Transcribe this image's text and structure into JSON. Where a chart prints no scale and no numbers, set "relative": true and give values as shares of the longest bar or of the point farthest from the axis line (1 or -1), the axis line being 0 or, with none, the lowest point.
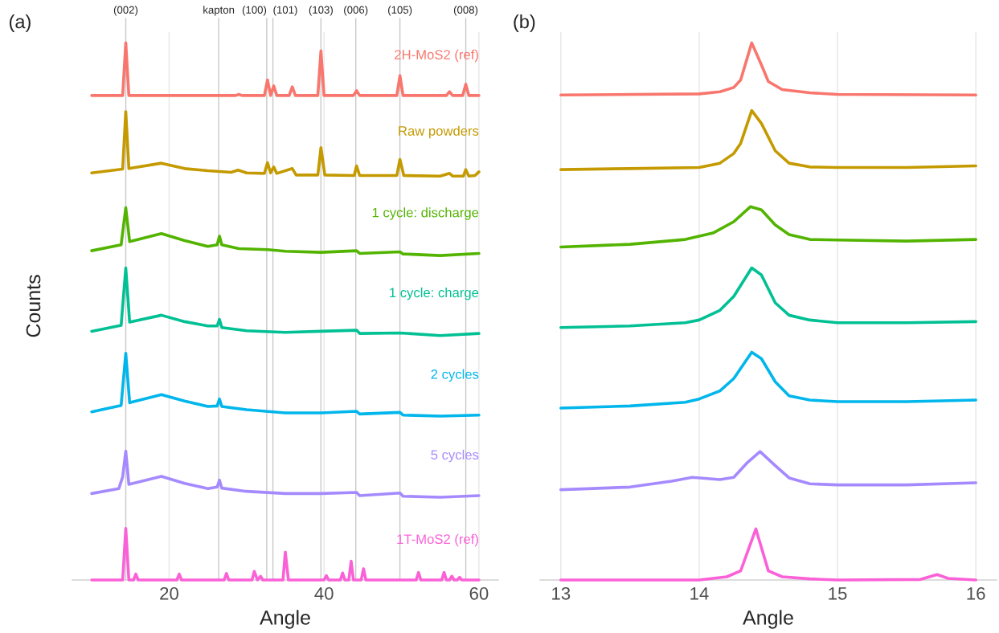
{
  "chart_data": [
    {
      "type": "line",
      "title": "(a)",
      "relative": true,
      "xlabel": "Angle",
      "ylabel": "Counts",
      "xlim": [
        7.5,
        62.5
      ],
      "xticks": [
        20,
        40,
        60
      ],
      "grid": "x",
      "ref_lines": [
        {
          "axis": "x",
          "value": 14.4,
          "color": "#c8c8c8"
        },
        {
          "axis": "x",
          "value": 26.4,
          "color": "#c8c8c8"
        },
        {
          "axis": "x",
          "value": 32.6,
          "color": "#c8c8c8"
        },
        {
          "axis": "x",
          "value": 33.4,
          "color": "#c8c8c8"
        },
        {
          "axis": "x",
          "value": 39.6,
          "color": "#c8c8c8"
        },
        {
          "axis": "x",
          "value": 44.1,
          "color": "#c8c8c8"
        },
        {
          "axis": "x",
          "value": 49.8,
          "color": "#c8c8c8"
        },
        {
          "axis": "x",
          "value": 58.3,
          "color": "#c8c8c8"
        }
      ],
      "annotations": [
        "(002)",
        "kapton",
        "(100)",
        "(101)",
        "(103)",
        "(006)",
        "(105)",
        "(008)"
      ],
      "series": [
        {
          "name": "2H-MoS2 (ref)",
          "color": "#f8766d",
          "x": [
            10,
            14.0,
            14.4,
            14.8,
            28.6,
            29.0,
            29.4,
            32.3,
            32.7,
            33.1,
            33.5,
            33.9,
            35.5,
            35.9,
            36.3,
            39.2,
            39.6,
            40.0,
            43.8,
            44.2,
            44.6,
            49.4,
            49.8,
            50.2,
            55.8,
            56.2,
            56.6,
            57.9,
            58.3,
            58.7,
            60
          ],
          "values": [
            0.902,
            0.902,
            1.0,
            0.902,
            0.902,
            0.904,
            0.902,
            0.902,
            0.931,
            0.902,
            0.92,
            0.902,
            0.902,
            0.918,
            0.902,
            0.902,
            0.985,
            0.902,
            0.902,
            0.911,
            0.902,
            0.902,
            0.939,
            0.902,
            0.902,
            0.909,
            0.902,
            0.902,
            0.923,
            0.902,
            0.902
          ]
        },
        {
          "name": "Raw powders",
          "color": "#c49a00",
          "x": [
            10,
            14.0,
            14.4,
            14.8,
            19,
            22,
            25,
            28,
            28.9,
            30,
            32.3,
            32.7,
            33.1,
            33.5,
            33.9,
            35.9,
            36.4,
            39.2,
            39.6,
            40.1,
            43.9,
            44.2,
            44.6,
            49.4,
            49.8,
            50.3,
            55,
            56.2,
            56.6,
            58,
            58.3,
            58.7,
            59.5,
            60
          ],
          "values": [
            0.758,
            0.765,
            0.872,
            0.766,
            0.776,
            0.766,
            0.762,
            0.759,
            0.763,
            0.758,
            0.757,
            0.777,
            0.758,
            0.769,
            0.757,
            0.766,
            0.754,
            0.754,
            0.805,
            0.754,
            0.753,
            0.771,
            0.753,
            0.753,
            0.783,
            0.753,
            0.752,
            0.757,
            0.752,
            0.752,
            0.764,
            0.752,
            0.753,
            0.76
          ]
        },
        {
          "name": "1 cycle: discharge",
          "color": "#53b400",
          "x": [
            10,
            13.8,
            14.4,
            14.9,
            19,
            22,
            25,
            26.2,
            26.5,
            26.8,
            29,
            32.7,
            35,
            39.6,
            44.2,
            44.6,
            49.8,
            50.2,
            55,
            60
          ],
          "values": [
            0.613,
            0.624,
            0.693,
            0.63,
            0.645,
            0.632,
            0.621,
            0.624,
            0.64,
            0.624,
            0.617,
            0.615,
            0.612,
            0.61,
            0.613,
            0.608,
            0.611,
            0.607,
            0.604,
            0.608
          ]
        },
        {
          "name": "1 cycle: charge",
          "color": "#00c094",
          "x": [
            10,
            13.8,
            14.4,
            14.9,
            19,
            22,
            25,
            26.2,
            26.5,
            26.8,
            30,
            35,
            39.6,
            44.2,
            44.6,
            49.8,
            55,
            60
          ],
          "values": [
            0.463,
            0.474,
            0.581,
            0.48,
            0.493,
            0.481,
            0.473,
            0.473,
            0.485,
            0.47,
            0.464,
            0.461,
            0.463,
            0.465,
            0.459,
            0.46,
            0.455,
            0.459
          ]
        },
        {
          "name": "2 cycles",
          "color": "#00b6eb",
          "x": [
            10,
            13.8,
            14.4,
            14.9,
            19,
            22,
            25,
            26.2,
            26.5,
            26.8,
            30,
            35,
            39.6,
            44.2,
            44.6,
            49.8,
            50.2,
            55,
            60
          ],
          "values": [
            0.313,
            0.325,
            0.422,
            0.33,
            0.345,
            0.333,
            0.323,
            0.324,
            0.337,
            0.323,
            0.317,
            0.311,
            0.311,
            0.314,
            0.309,
            0.312,
            0.307,
            0.305,
            0.307
          ]
        },
        {
          "name": "5 cycles",
          "color": "#a58aff",
          "x": [
            10,
            13.5,
            14.0,
            14.4,
            14.8,
            19,
            22,
            25,
            26.2,
            26.5,
            26.8,
            30,
            35,
            39.6,
            44.2,
            44.6,
            49.8,
            50.2,
            55,
            60
          ],
          "values": [
            0.161,
            0.17,
            0.192,
            0.24,
            0.178,
            0.193,
            0.18,
            0.17,
            0.173,
            0.186,
            0.171,
            0.165,
            0.161,
            0.161,
            0.163,
            0.157,
            0.162,
            0.156,
            0.154,
            0.157
          ]
        },
        {
          "name": "1T-MoS2 (ref)",
          "color": "#fb61d7",
          "x": [
            10,
            14.0,
            14.4,
            14.8,
            15.4,
            15.7,
            16.0,
            21.0,
            21.3,
            21.6,
            27.1,
            27.4,
            27.7,
            30.7,
            31.0,
            31.4,
            31.8,
            32.1,
            34.7,
            35.0,
            35.4,
            40.0,
            40.3,
            40.6,
            42.1,
            42.4,
            42.7,
            43.2,
            43.5,
            43.8,
            44.2,
            44.8,
            45.1,
            45.4,
            51.9,
            52.2,
            52.5,
            55.2,
            55.5,
            55.8,
            56.2,
            56.5,
            56.8,
            57.2,
            57.5,
            57.8,
            60
          ],
          "values": [
            0,
            0,
            0.096,
            0,
            0,
            0.011,
            0,
            0,
            0.011,
            0,
            0,
            0.012,
            0,
            0,
            0.016,
            0,
            0.007,
            0,
            0,
            0.052,
            0,
            0,
            0.008,
            0,
            0,
            0.013,
            0,
            0,
            0.035,
            0,
            0,
            0,
            0.021,
            0,
            0,
            0.014,
            0,
            0,
            0.014,
            0,
            0,
            0.007,
            0,
            0,
            0.005,
            0,
            0
          ]
        }
      ]
    },
    {
      "type": "line",
      "title": "(b)",
      "relative": true,
      "xlabel": "Angle",
      "xlim": [
        12.85,
        16.15
      ],
      "xticks": [
        13,
        14,
        15,
        16
      ],
      "grid": "x",
      "series": [
        {
          "color": "#f8766d",
          "x": [
            13,
            14.0,
            14.15,
            14.25,
            14.3,
            14.38,
            14.45,
            14.5,
            14.6,
            14.8,
            15,
            16
          ],
          "values": [
            0.903,
            0.905,
            0.909,
            0.917,
            0.931,
            1.0,
            0.959,
            0.928,
            0.913,
            0.907,
            0.904,
            0.903
          ]
        },
        {
          "color": "#c49a00",
          "x": [
            13,
            13.5,
            14.0,
            14.15,
            14.25,
            14.3,
            14.38,
            14.45,
            14.55,
            14.65,
            14.8,
            15,
            15.5,
            16
          ],
          "values": [
            0.764,
            0.766,
            0.768,
            0.776,
            0.794,
            0.813,
            0.874,
            0.85,
            0.799,
            0.776,
            0.769,
            0.768,
            0.768,
            0.771
          ]
        },
        {
          "color": "#53b400",
          "x": [
            13,
            13.5,
            13.9,
            14.1,
            14.25,
            14.37,
            14.45,
            14.55,
            14.65,
            14.8,
            15,
            15.5,
            16
          ],
          "values": [
            0.62,
            0.625,
            0.634,
            0.646,
            0.667,
            0.695,
            0.689,
            0.661,
            0.643,
            0.634,
            0.633,
            0.631,
            0.634
          ]
        },
        {
          "color": "#00c094",
          "x": [
            13,
            13.5,
            13.9,
            14.0,
            14.15,
            14.25,
            14.38,
            14.45,
            14.55,
            14.65,
            14.8,
            15,
            15.5,
            16
          ],
          "values": [
            0.47,
            0.473,
            0.479,
            0.484,
            0.502,
            0.528,
            0.581,
            0.568,
            0.516,
            0.493,
            0.484,
            0.479,
            0.479,
            0.481
          ]
        },
        {
          "color": "#00b6eb",
          "x": [
            13,
            13.5,
            13.9,
            14.0,
            14.15,
            14.25,
            14.38,
            14.45,
            14.55,
            14.65,
            14.8,
            15,
            15.5,
            16
          ],
          "values": [
            0.32,
            0.324,
            0.331,
            0.337,
            0.352,
            0.375,
            0.424,
            0.412,
            0.369,
            0.343,
            0.335,
            0.332,
            0.332,
            0.335
          ]
        },
        {
          "color": "#a58aff",
          "x": [
            13,
            13.5,
            13.8,
            13.95,
            14.15,
            14.25,
            14.35,
            14.44,
            14.55,
            14.65,
            14.8,
            15,
            15.5,
            16
          ],
          "values": [
            0.168,
            0.173,
            0.184,
            0.191,
            0.187,
            0.191,
            0.219,
            0.239,
            0.213,
            0.19,
            0.179,
            0.177,
            0.177,
            0.181
          ]
        },
        {
          "color": "#fb61d7",
          "x": [
            13,
            14.0,
            14.2,
            14.3,
            14.41,
            14.5,
            14.6,
            14.8,
            15,
            15.6,
            15.72,
            15.8,
            16
          ],
          "values": [
            0,
            0,
            0.006,
            0.017,
            0.095,
            0.017,
            0.006,
            0.002,
            0,
            0.001,
            0.01,
            0.003,
            0
          ]
        }
      ]
    }
  ]
}
